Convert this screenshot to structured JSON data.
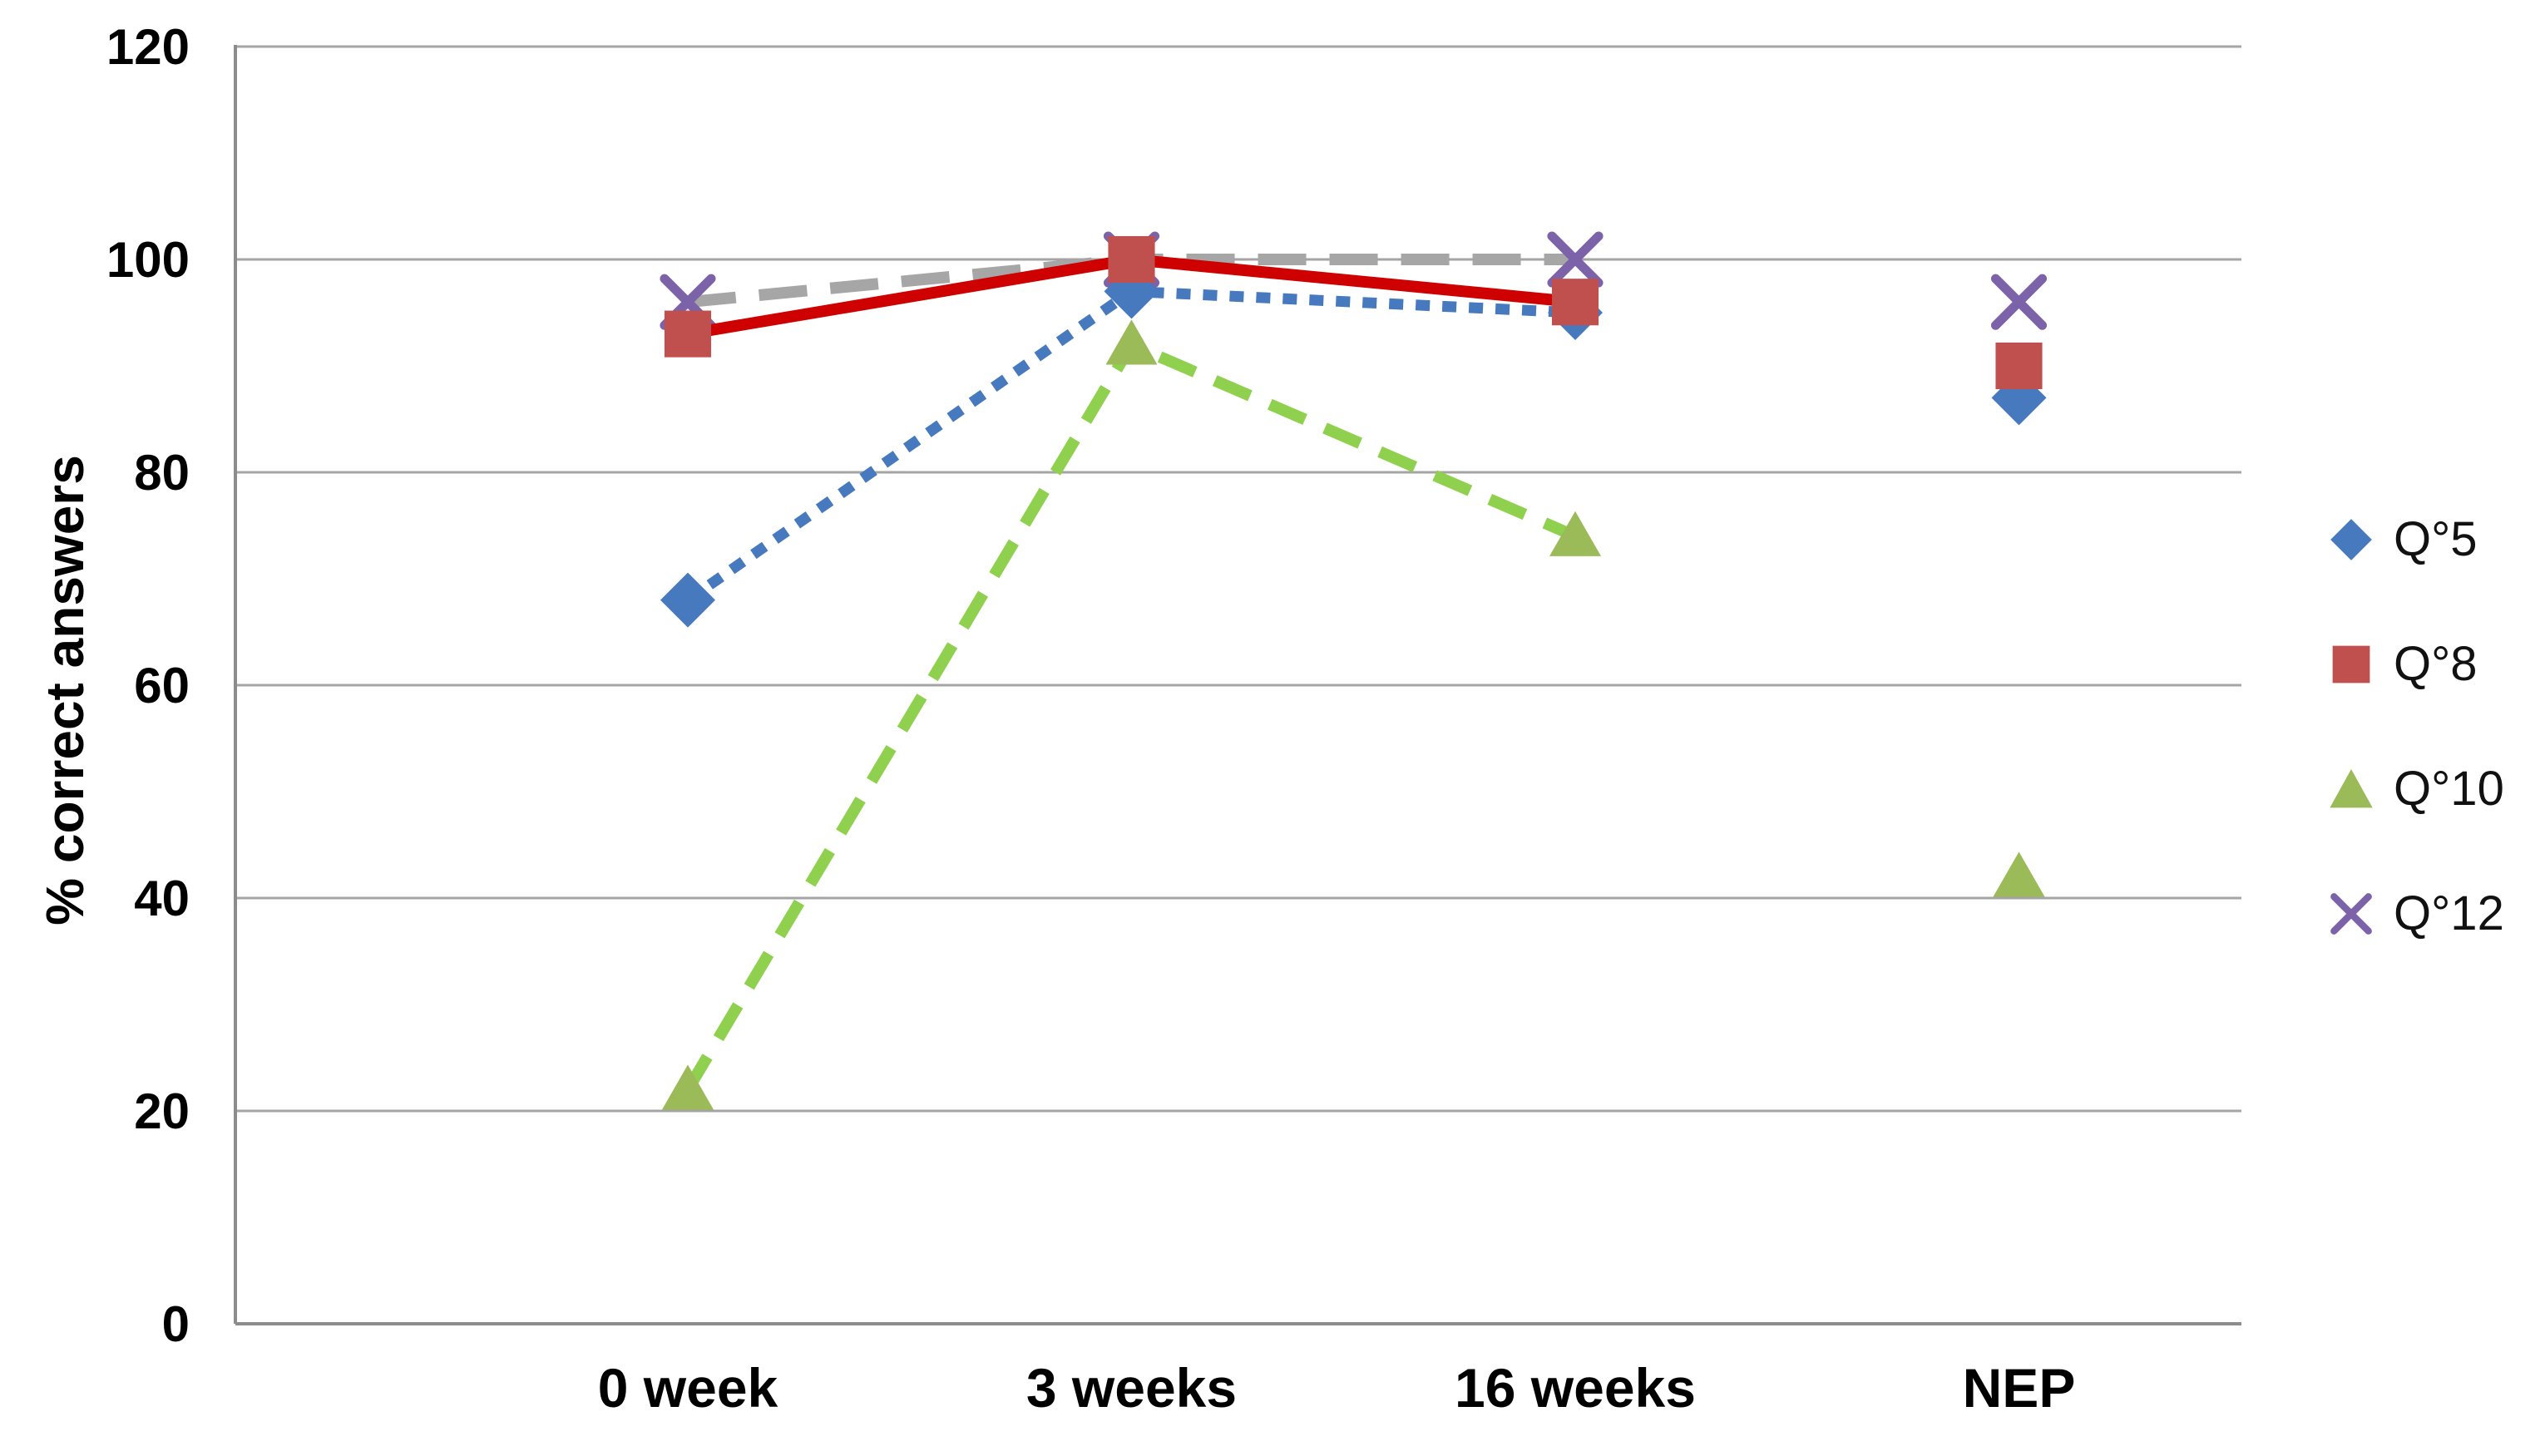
{
  "chart_data": {
    "type": "line",
    "title": "",
    "xlabel": "",
    "ylabel": "% correct answers",
    "ylim": [
      0,
      120
    ],
    "yticks": [
      0,
      20,
      40,
      60,
      80,
      100,
      120
    ],
    "grid": "horizontal",
    "legend_position": "right",
    "categories": [
      "0 week",
      "3 weeks",
      "16 weeks",
      "NEP"
    ],
    "series": [
      {
        "name": "Q°5",
        "values": [
          68,
          97,
          95,
          87
        ],
        "marker": "diamond",
        "marker_color": "#4679BD",
        "line_color": "#4679BD",
        "line_style": "dotted",
        "line_connects_categories": [
          0,
          1,
          2
        ],
        "isolated_marker_categories": [
          3
        ]
      },
      {
        "name": "Q°8",
        "values": [
          93,
          100,
          96,
          90
        ],
        "marker": "square",
        "marker_color": "#C0504D",
        "line_color": "#CE0000",
        "line_style": "solid",
        "line_connects_categories": [
          0,
          1,
          2
        ],
        "isolated_marker_categories": [
          3
        ]
      },
      {
        "name": "Q°10",
        "values": [
          22,
          92,
          74,
          42
        ],
        "marker": "triangle",
        "marker_color": "#9BBB59",
        "line_color": "#8FD04E",
        "line_style": "dashed",
        "line_connects_categories": [
          0,
          1,
          2
        ],
        "isolated_marker_categories": [
          3
        ]
      },
      {
        "name": "Q°12",
        "values": [
          96,
          100,
          100,
          96
        ],
        "marker": "x",
        "marker_color": "#7C62A8",
        "line_color": "#A6A6A6",
        "line_style": "long-dash",
        "line_connects_categories": [
          0,
          1,
          2
        ],
        "isolated_marker_categories": [
          3
        ]
      }
    ],
    "axis_text_color": "#000000",
    "gridline_color": "#A4A4A4",
    "axis_line_color": "#8C8C8C"
  }
}
